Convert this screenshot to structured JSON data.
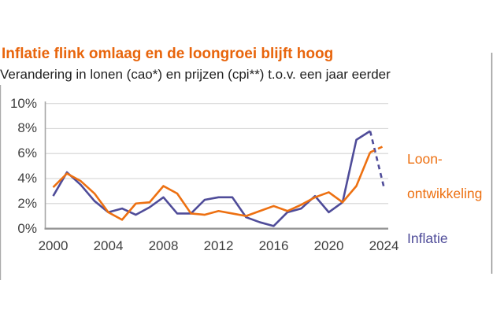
{
  "header": {
    "title": "Inflatie flink omlaag en de loongroei blijft hoog",
    "subtitle": "Verandering in lonen (cao*) en prijzen (cpi**) t.o.v. een jaar eerder"
  },
  "legend": {
    "loon_line1": "Loon-",
    "loon_line2": "ontwikkeling",
    "inflatie": "Inflatie"
  },
  "colors": {
    "title_orange": "#e8650c",
    "loon_orange": "#ed7011",
    "inflatie_purple": "#4f4c99",
    "gridline": "#d9d9d9",
    "y_axis": "#a6a6a6",
    "x_axis": "#969696",
    "tick_text": "#3f3f3f",
    "edge_line": "#8c8c8c"
  },
  "chart_data": {
    "type": "line",
    "title": "Inflatie flink omlaag en de loongroei blijft hoog",
    "subtitle": "Verandering in lonen (cao*) en prijzen (cpi**) t.o.v. een jaar eerder",
    "xlabel": "",
    "ylabel": "",
    "ylim": [
      0,
      10
    ],
    "yticks": [
      {
        "value": 0,
        "label": "0%"
      },
      {
        "value": 2,
        "label": "2%"
      },
      {
        "value": 4,
        "label": "4%"
      },
      {
        "value": 6,
        "label": "6%"
      },
      {
        "value": 8,
        "label": "8%"
      },
      {
        "value": 10,
        "label": "10%"
      }
    ],
    "xticks": [
      2000,
      2004,
      2008,
      2012,
      2016,
      2020,
      2024
    ],
    "x": [
      2000,
      2001,
      2002,
      2003,
      2004,
      2005,
      2006,
      2007,
      2008,
      2009,
      2010,
      2011,
      2012,
      2013,
      2014,
      2015,
      2016,
      2017,
      2018,
      2019,
      2020,
      2021,
      2022,
      2023,
      2024
    ],
    "grid": "horizontal",
    "legend_position": "right",
    "dashed_note": "last segment (2023-2024) is a dashed forecast for both series",
    "series": [
      {
        "name": "Inflatie",
        "color": "#4f4c99",
        "solid_until_index": 23,
        "values": [
          2.6,
          4.5,
          3.5,
          2.2,
          1.3,
          1.6,
          1.1,
          1.7,
          2.5,
          1.2,
          1.2,
          2.3,
          2.5,
          2.5,
          0.9,
          0.5,
          0.2,
          1.3,
          1.6,
          2.6,
          1.3,
          2.1,
          7.1,
          7.8,
          3.3
        ]
      },
      {
        "name": "Loon-ontwikkeling",
        "color": "#ed7011",
        "solid_until_index": 23,
        "values": [
          3.3,
          4.4,
          3.8,
          2.8,
          1.3,
          0.7,
          2.0,
          2.1,
          3.4,
          2.8,
          1.2,
          1.1,
          1.4,
          1.2,
          1.0,
          1.4,
          1.8,
          1.4,
          1.9,
          2.5,
          2.9,
          2.1,
          3.4,
          6.1,
          6.6
        ]
      }
    ]
  }
}
